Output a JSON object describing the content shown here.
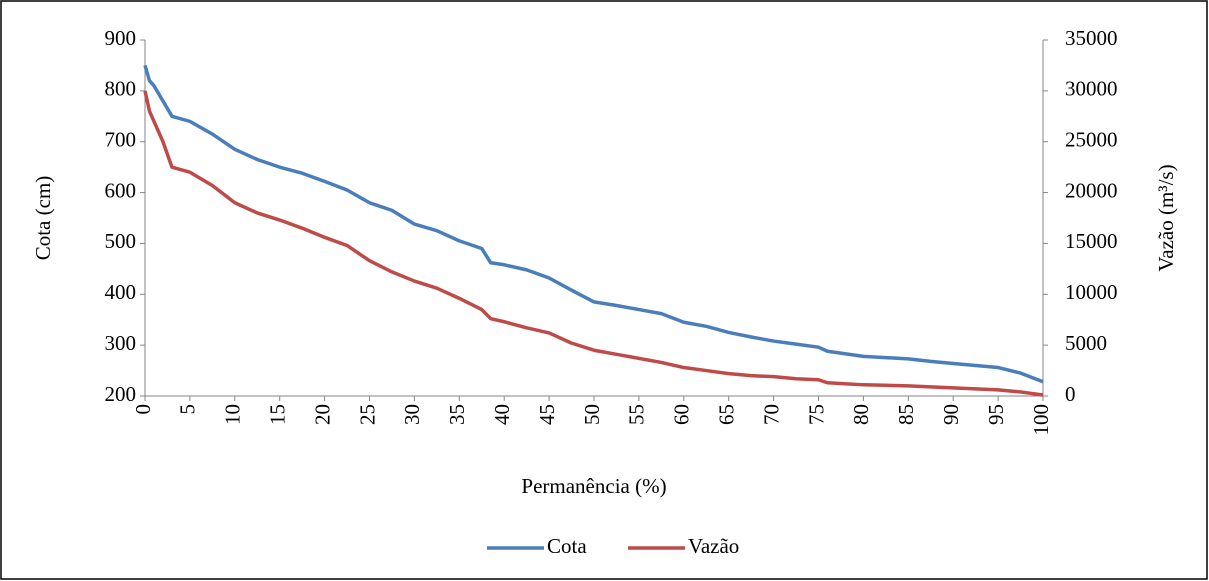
{
  "chart_data": {
    "type": "line",
    "x_label": "Permanência (%)",
    "y_label": "Cota (cm)",
    "y2_label": "Vazão (m³/s)",
    "x": [
      0,
      0.5,
      1,
      2,
      3,
      5,
      7.5,
      10,
      12.5,
      15,
      17.5,
      20,
      22.5,
      25,
      27.5,
      30,
      32.5,
      35,
      37.5,
      38.5,
      40,
      42.5,
      45,
      47.5,
      50,
      52.5,
      55,
      57.5,
      60,
      62.5,
      65,
      67.5,
      70,
      72.5,
      75,
      76,
      80,
      85,
      87.5,
      90,
      95,
      97.5,
      100
    ],
    "series": [
      {
        "name": "Cota",
        "color": "#4a7ebb",
        "axis": "y",
        "values": [
          850,
          820,
          810,
          780,
          750,
          740,
          715,
          685,
          665,
          650,
          638,
          622,
          605,
          580,
          565,
          538,
          525,
          505,
          490,
          462,
          458,
          448,
          432,
          408,
          385,
          378,
          370,
          362,
          345,
          337,
          325,
          316,
          308,
          302,
          296,
          288,
          278,
          273,
          268,
          264,
          256,
          245,
          228
        ]
      },
      {
        "name": "Vazão",
        "color": "#be4b48",
        "axis": "y2",
        "values": [
          30000,
          28000,
          27000,
          25000,
          22500,
          22000,
          20700,
          19000,
          18000,
          17300,
          16500,
          15600,
          14800,
          13300,
          12200,
          11300,
          10600,
          9600,
          8500,
          7600,
          7300,
          6700,
          6200,
          5200,
          4500,
          4100,
          3700,
          3300,
          2800,
          2500,
          2200,
          2000,
          1900,
          1700,
          1600,
          1300,
          1100,
          1000,
          900,
          800,
          600,
          400,
          100
        ]
      }
    ],
    "xlim": [
      0,
      100
    ],
    "xticks": [
      0,
      5,
      10,
      15,
      20,
      25,
      30,
      35,
      40,
      45,
      50,
      55,
      60,
      65,
      70,
      75,
      80,
      85,
      90,
      95,
      100
    ],
    "ylim": [
      200,
      900
    ],
    "yticks": [
      200,
      300,
      400,
      500,
      600,
      700,
      800,
      900
    ],
    "y2lim": [
      0,
      35000
    ],
    "y2ticks": [
      0,
      5000,
      10000,
      15000,
      20000,
      25000,
      30000,
      35000
    ],
    "grid": false,
    "legend": "bottom"
  }
}
